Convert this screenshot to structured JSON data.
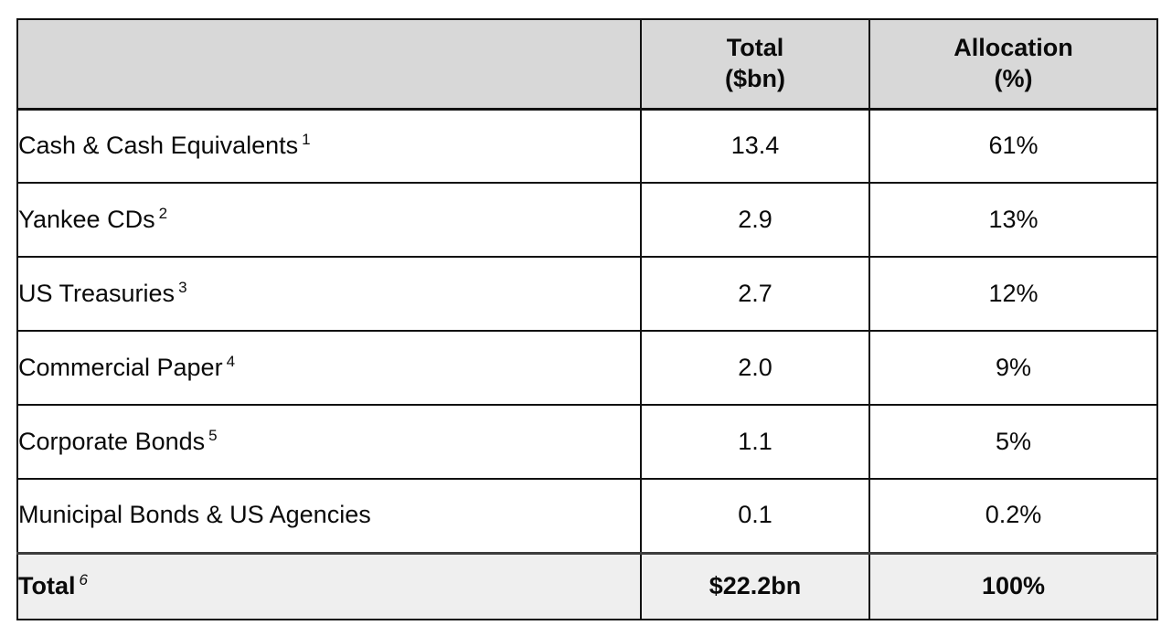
{
  "colors": {
    "header_bg": "#d8d8d8",
    "total_row_bg": "#efefef",
    "border": "#111111",
    "text": "#0a0a0a"
  },
  "table": {
    "header": {
      "label_col": "",
      "total_col_line1": "Total",
      "total_col_line2": "($bn)",
      "alloc_col_line1": "Allocation",
      "alloc_col_line2": "(%)"
    },
    "rows": [
      {
        "label": "Cash & Cash Equivalents",
        "sup": "1",
        "total": "13.4",
        "allocation": "61%"
      },
      {
        "label": "Yankee CDs",
        "sup": "2",
        "total": "2.9",
        "allocation": "13%"
      },
      {
        "label": "US Treasuries",
        "sup": "3",
        "total": "2.7",
        "allocation": "12%"
      },
      {
        "label": "Commercial Paper",
        "sup": "4",
        "total": "2.0",
        "allocation": "9%"
      },
      {
        "label": "Corporate Bonds",
        "sup": "5",
        "total": "1.1",
        "allocation": "5%"
      },
      {
        "label": "Municipal Bonds & US Agencies",
        "sup": "",
        "total": "0.1",
        "allocation": "0.2%"
      }
    ],
    "total_row": {
      "label": "Total",
      "sup": "6",
      "total": "$22.2bn",
      "allocation": "100%"
    }
  }
}
